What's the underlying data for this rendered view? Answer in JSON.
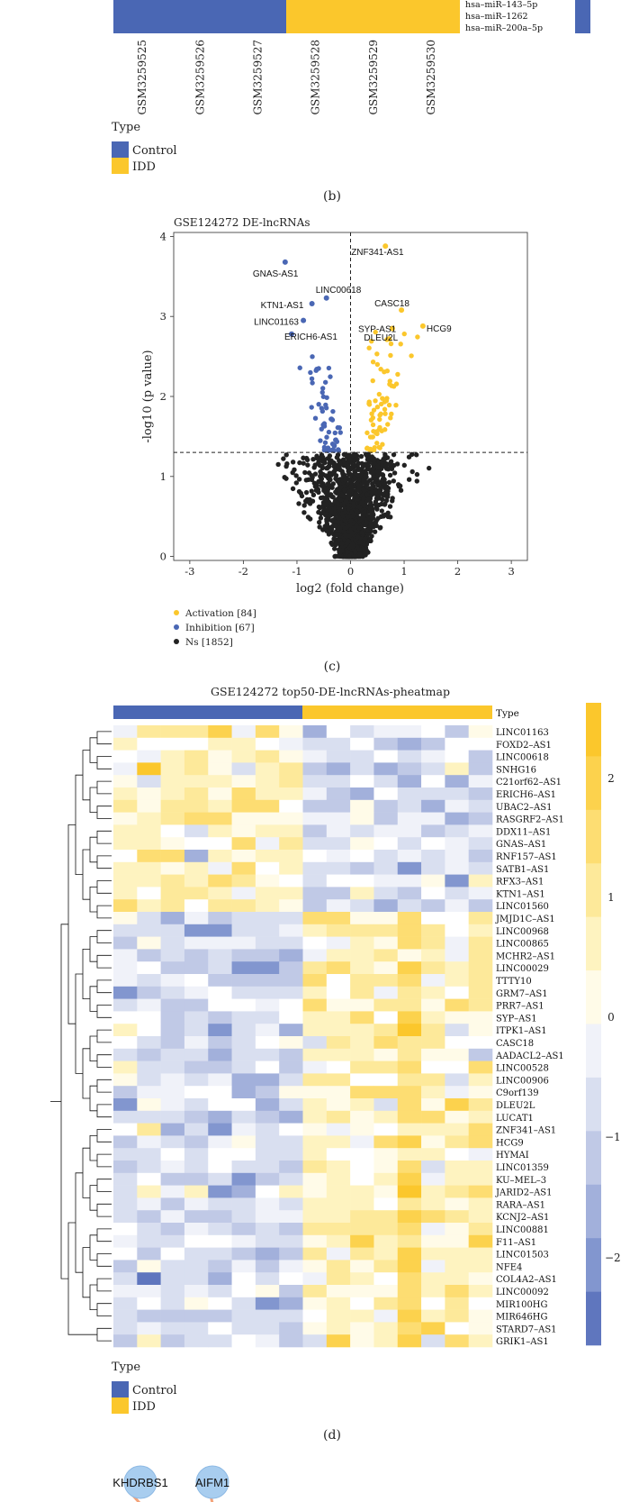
{
  "panel_b": {
    "samples": [
      "GSM3259525",
      "GSM3259526",
      "GSM3259527",
      "GSM3259528",
      "GSM3259529",
      "GSM3259530"
    ],
    "groups": [
      "Control",
      "Control",
      "Control",
      "IDD",
      "IDD",
      "IDD"
    ],
    "row_labels": [
      "hsa–miR–143–5p",
      "hsa–miR–1262",
      "hsa–miR–200a–5p"
    ],
    "legend_title": "Type",
    "legend": [
      "Control",
      "IDD"
    ],
    "caption": "(b)"
  },
  "panel_c": {
    "caption": "(c)",
    "legend": [
      "Activation [84]",
      "Inhibition [67]",
      "Ns [1852]"
    ]
  },
  "panel_d": {
    "title": "GSE124272 top50-DE-lncRNAs-pheatmap",
    "type_label": "Type",
    "genes": [
      "LINC01163",
      "FOXD2–AS1",
      "LINC00618",
      "SNHG16",
      "C21orf62–AS1",
      "ERICH6–AS1",
      "UBAC2–AS1",
      "RASGRF2–AS1",
      "DDX11–AS1",
      "GNAS–AS1",
      "RNF157–AS1",
      "SATB1–AS1",
      "RFX3–AS1",
      "KTN1–AS1",
      "LINC01560",
      "JMJD1C–AS1",
      "LINC00968",
      "LINC00865",
      "MCHR2–AS1",
      "LINC00029",
      "TTTY10",
      "GRM7–AS1",
      "PRR7–AS1",
      "SYP–AS1",
      "ITPK1–AS1",
      "CASC18",
      "AADACL2–AS1",
      "LINC00528",
      "LINC00906",
      "C9orf139",
      "DLEU2L",
      "LUCAT1",
      "ZNF341–AS1",
      "HCG9",
      "HYMAI",
      "LINC01359",
      "KU–MEL–3",
      "JARID2–AS1",
      "RARA–AS1",
      "KCNJ2–AS1",
      "LINC00881",
      "F11–AS1",
      "LINC01503",
      "NFE4",
      "COL4A2–AS1",
      "LINC00092",
      "MIR100HG",
      "MIR646HG",
      "STARD7–AS1",
      "GRIK1–AS1"
    ],
    "scale_ticks": [
      "2",
      "1",
      "0",
      "−1",
      "−2"
    ],
    "legend_title": "Type",
    "legend": [
      "Control",
      "IDD"
    ],
    "caption": "(d)"
  },
  "network": {
    "nodes": [
      "KHDRBS1",
      "AIFM1"
    ]
  },
  "colors": {
    "control": "#4a67b4",
    "idd": "#fbc72c",
    "ns": "#222222"
  },
  "chart_data": [
    {
      "type": "scatter",
      "title": "GSE124272 DE-lncRNAs",
      "xlabel": "log2 (fold change)",
      "ylabel": "-log10 (p value)",
      "xlim": [
        -3.3,
        3.3
      ],
      "ylim": [
        -0.05,
        4.05
      ],
      "xticks": [
        "-3",
        "-2",
        "-1",
        "0",
        "1",
        "2",
        "3"
      ],
      "yticks": [
        "0",
        "1",
        "2",
        "3",
        "4"
      ],
      "threshold_y": 1.3,
      "threshold_x": 0,
      "legend": [
        "Activation [84]",
        "Inhibition [67]",
        "Ns [1852]"
      ],
      "labeled_points": [
        {
          "label": "ZNF341-AS1",
          "x": 0.65,
          "y": 3.88,
          "group": "activation"
        },
        {
          "label": "GNAS-AS1",
          "x": -1.22,
          "y": 3.68,
          "group": "inhibition"
        },
        {
          "label": "LINC00618",
          "x": -0.45,
          "y": 3.23,
          "group": "inhibition"
        },
        {
          "label": "KTN1-AS1",
          "x": -0.72,
          "y": 3.16,
          "group": "inhibition"
        },
        {
          "label": "CASC18",
          "x": 0.95,
          "y": 3.08,
          "group": "activation"
        },
        {
          "label": "LINC01163",
          "x": -0.88,
          "y": 2.95,
          "group": "inhibition"
        },
        {
          "label": "SYP-AS1",
          "x": 0.78,
          "y": 2.85,
          "group": "activation"
        },
        {
          "label": "HCG9",
          "x": 1.35,
          "y": 2.88,
          "group": "activation"
        },
        {
          "label": "ERICH6-AS1",
          "x": -1.1,
          "y": 2.78,
          "group": "inhibition"
        },
        {
          "label": "DLEU2L",
          "x": 0.72,
          "y": 2.72,
          "group": "activation"
        }
      ]
    }
  ]
}
